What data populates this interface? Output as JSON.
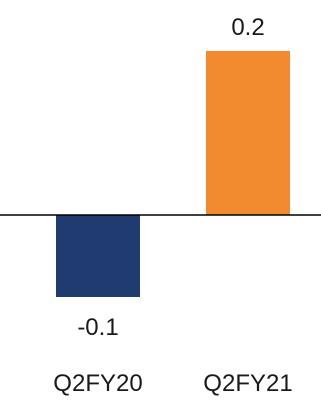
{
  "chart_data": {
    "type": "bar",
    "categories": [
      "Q2FY20",
      "Q2FY21"
    ],
    "values": [
      -0.1,
      0.2
    ],
    "value_labels": [
      "-0.1",
      "0.2"
    ],
    "colors": [
      "#1f3b6f",
      "#f28a30"
    ],
    "axis_color": "#000000",
    "ylim": [
      -0.1,
      0.2
    ],
    "grid": false,
    "legend": "none"
  }
}
